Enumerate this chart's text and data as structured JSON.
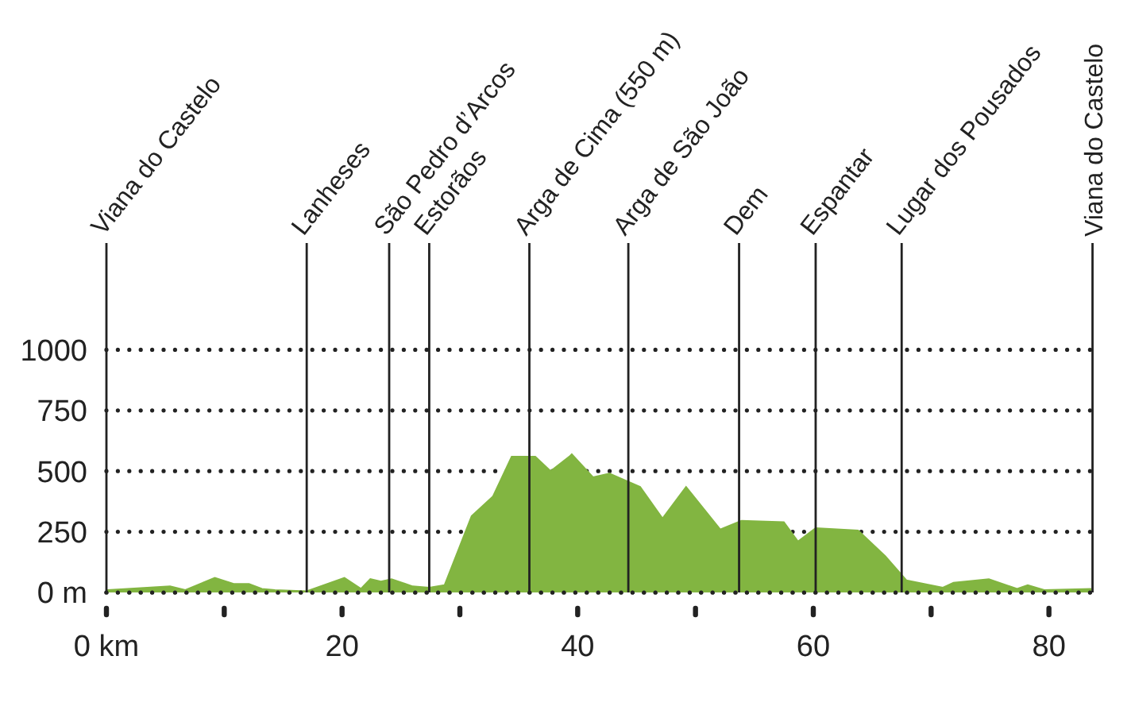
{
  "chart_data": {
    "type": "area",
    "color": "#82b541",
    "x": [
      0,
      0.1,
      5.4,
      6.7,
      9.2,
      10.8,
      12.1,
      13.2,
      14.3,
      17,
      20.2,
      21.6,
      22.4,
      23.3,
      24.2,
      26,
      27.4,
      28.7,
      31,
      32.8,
      34.4,
      36.4,
      37.7,
      39.3,
      39.5,
      41.3,
      42.7,
      45.3,
      47.2,
      49.2,
      52.1,
      53.9,
      57.5,
      58.7,
      60.2,
      63.8,
      66.1,
      67.9,
      71,
      71.9,
      74.9,
      77.3,
      78.2,
      79.6,
      83.6
    ],
    "values": [
      10,
      10,
      25,
      10,
      60,
      35,
      35,
      15,
      10,
      5,
      60,
      15,
      55,
      45,
      55,
      25,
      20,
      30,
      315,
      395,
      560,
      560,
      500,
      560,
      570,
      475,
      490,
      435,
      305,
      435,
      260,
      295,
      290,
      210,
      265,
      255,
      150,
      50,
      20,
      40,
      55,
      15,
      30,
      10,
      15
    ],
    "xlim": [
      0,
      84
    ],
    "xticks": [
      {
        "value": 0,
        "label": "0 km"
      },
      {
        "value": 10,
        "label": null
      },
      20,
      {
        "value": 30,
        "label": null
      },
      40,
      {
        "value": 50,
        "label": null
      },
      60,
      {
        "value": 70,
        "label": null
      },
      80
    ],
    "ylim": [
      0,
      1440
    ],
    "yticks": [
      {
        "value": 0,
        "label": "0 m"
      },
      250,
      500,
      750,
      1000
    ],
    "grid": "y",
    "ref_lines": [
      {
        "axis": "x",
        "value": 0,
        "label": "Viana do Castelo"
      },
      {
        "axis": "x",
        "value": 17,
        "label": "Lanheses"
      },
      {
        "axis": "x",
        "value": 24,
        "label": "São Pedro d’Arcos"
      },
      {
        "axis": "x",
        "value": 27.4,
        "label": "Estorãos"
      },
      {
        "axis": "x",
        "value": 35.9,
        "label": "Arga de Cima (550 m)"
      },
      {
        "axis": "x",
        "value": 44.3,
        "label": "Arga de São João"
      },
      {
        "axis": "x",
        "value": 53.7,
        "label": "Dem"
      },
      {
        "axis": "x",
        "value": 60.2,
        "label": "Espantar"
      },
      {
        "axis": "x",
        "value": 67.5,
        "label": "Lugar dos Pousados"
      },
      {
        "axis": "x",
        "value": 83.7,
        "label": "Viana do Castelo"
      }
    ]
  }
}
